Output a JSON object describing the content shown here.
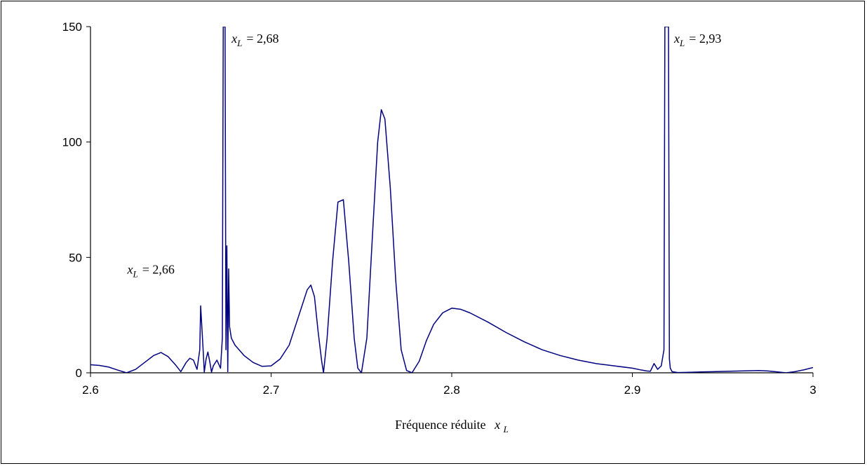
{
  "chart_data": {
    "type": "line",
    "title": "",
    "xlabel": "Fréquence réduite",
    "xlabel_symbol": "x",
    "xlabel_subscript": "L",
    "ylabel": "",
    "xlim": [
      2.6,
      3.0
    ],
    "ylim": [
      0,
      150
    ],
    "x_ticks": [
      2.6,
      2.7,
      2.8,
      2.9,
      3.0
    ],
    "x_tick_labels": [
      "2.6",
      "2.7",
      "2.8",
      "2.9",
      "3"
    ],
    "y_ticks": [
      0,
      50,
      100,
      150
    ],
    "y_tick_labels": [
      "0",
      "50",
      "100",
      "150"
    ],
    "grid": false,
    "legend": "none",
    "line_color": "#000080",
    "annotations": [
      {
        "symbol": "x",
        "subscript": "L",
        "value": "= 2,66",
        "x": 2.66,
        "y": 43
      },
      {
        "symbol": "x",
        "subscript": "L",
        "value": "= 2,68",
        "x": 2.675,
        "y": 143
      },
      {
        "symbol": "x",
        "subscript": "L",
        "value": "= 2,93",
        "x": 2.92,
        "y": 143
      }
    ],
    "series": [
      {
        "x": [
          2.6,
          2.605,
          2.61,
          2.615,
          2.62,
          2.625,
          2.63,
          2.635,
          2.639,
          2.643,
          2.647,
          2.65,
          2.653,
          2.655,
          2.657,
          2.659,
          2.6605,
          2.661,
          2.6625,
          2.663,
          2.664,
          2.665,
          2.666,
          2.667,
          2.668,
          2.67,
          2.672,
          2.673,
          2.6735,
          2.674,
          2.6745,
          2.675,
          2.6755,
          2.676,
          2.6765,
          2.677,
          2.678,
          2.68,
          2.685,
          2.69,
          2.695,
          2.7,
          2.705,
          2.71,
          2.715,
          2.72,
          2.722,
          2.724,
          2.726,
          2.728,
          2.729,
          2.731,
          2.734,
          2.737,
          2.74,
          2.743,
          2.746,
          2.748,
          2.75,
          2.753,
          2.756,
          2.759,
          2.761,
          2.763,
          2.766,
          2.769,
          2.772,
          2.775,
          2.778,
          2.782,
          2.786,
          2.79,
          2.795,
          2.8,
          2.805,
          2.81,
          2.82,
          2.83,
          2.84,
          2.85,
          2.86,
          2.87,
          2.88,
          2.89,
          2.9,
          2.905,
          2.908,
          2.91,
          2.912,
          2.914,
          2.916,
          2.9175,
          2.918,
          2.9185,
          2.919,
          2.9195,
          2.92,
          2.9205,
          2.921,
          2.922,
          2.925,
          2.93,
          2.94,
          2.95,
          2.96,
          2.97,
          2.975,
          2.98,
          2.985,
          2.99,
          2.995,
          3.0
        ],
        "y": [
          3.5,
          3.2,
          2.5,
          1.2,
          0.0,
          1.5,
          4.5,
          7.5,
          8.8,
          7.0,
          3.5,
          0.5,
          4.5,
          6.3,
          5.5,
          1.5,
          10.0,
          29.0,
          8.0,
          0.3,
          6.0,
          9.0,
          5.0,
          0.3,
          3.0,
          5.5,
          2.0,
          15.0,
          150.0,
          150.0,
          150.0,
          10.0,
          55.0,
          0.5,
          45.0,
          20.0,
          15.0,
          12.0,
          7.5,
          4.5,
          2.8,
          3.0,
          6.0,
          12.0,
          24.0,
          36.0,
          38.0,
          33.0,
          18.0,
          5.0,
          0.0,
          15.0,
          48.0,
          74.0,
          75.0,
          48.0,
          15.0,
          2.0,
          0.0,
          15.0,
          58.0,
          100.0,
          114.0,
          110.0,
          80.0,
          40.0,
          10.0,
          1.0,
          0.0,
          5.0,
          14.0,
          21.0,
          26.0,
          28.0,
          27.5,
          26.0,
          22.0,
          17.5,
          13.5,
          10.0,
          7.5,
          5.5,
          4.0,
          3.0,
          2.0,
          1.2,
          0.8,
          0.7,
          4.0,
          1.5,
          3.0,
          10.0,
          150.0,
          150.0,
          150.0,
          150.0,
          150.0,
          6.0,
          2.0,
          0.5,
          0.1,
          0.2,
          0.4,
          0.6,
          0.8,
          1.0,
          0.8,
          0.4,
          0.0,
          0.5,
          1.3,
          2.3
        ]
      }
    ]
  }
}
